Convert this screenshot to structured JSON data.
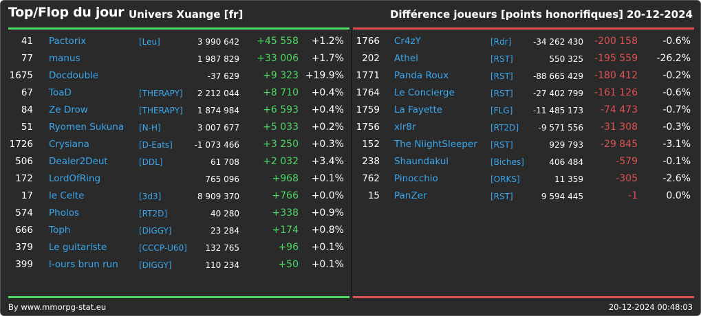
{
  "header": {
    "title": "Top/Flop du jour",
    "universe": "Univers Xuange [fr]",
    "metric": "Différence joueurs [points honorifiques]",
    "date": "20-12-2024"
  },
  "colors": {
    "background": "#2a2a2a",
    "positive": "#4cd964",
    "negative": "#e05151",
    "link": "#3aa7ee",
    "text": "#ffffff"
  },
  "top": [
    {
      "rank": "41",
      "name": "Pactorix",
      "tag": "[Leu]",
      "points": "3 990 642",
      "diff": "+45 558",
      "pct": "+1.2%"
    },
    {
      "rank": "77",
      "name": "manus",
      "tag": "",
      "points": "1 987 829",
      "diff": "+33 006",
      "pct": "+1.7%"
    },
    {
      "rank": "1675",
      "name": "Docdouble",
      "tag": "",
      "points": "-37 629",
      "diff": "+9 323",
      "pct": "+19.9%"
    },
    {
      "rank": "67",
      "name": "ToaD",
      "tag": "[THERAPY]",
      "points": "2 212 044",
      "diff": "+8 710",
      "pct": "+0.4%"
    },
    {
      "rank": "84",
      "name": "Ze Drow",
      "tag": "[THERAPY]",
      "points": "1 874 984",
      "diff": "+6 593",
      "pct": "+0.4%"
    },
    {
      "rank": "51",
      "name": "Ryomen Sukuna",
      "tag": "[N-H]",
      "points": "3 007 677",
      "diff": "+5 033",
      "pct": "+0.2%"
    },
    {
      "rank": "1726",
      "name": "Crysiana",
      "tag": "[D-Eats]",
      "points": "-1 073 466",
      "diff": "+3 250",
      "pct": "+0.3%"
    },
    {
      "rank": "506",
      "name": "Dealer2Deut",
      "tag": "[DDL]",
      "points": "61 708",
      "diff": "+2 032",
      "pct": "+3.4%"
    },
    {
      "rank": "172",
      "name": "LordOfRing",
      "tag": "",
      "points": "765 096",
      "diff": "+968",
      "pct": "+0.1%"
    },
    {
      "rank": "17",
      "name": "le Celte",
      "tag": "[3d3]",
      "points": "8 909 370",
      "diff": "+766",
      "pct": "+0.0%"
    },
    {
      "rank": "574",
      "name": "Pholos",
      "tag": "[RT2D]",
      "points": "40 280",
      "diff": "+338",
      "pct": "+0.9%"
    },
    {
      "rank": "666",
      "name": "Toph",
      "tag": "[DIGGY]",
      "points": "23 284",
      "diff": "+174",
      "pct": "+0.8%"
    },
    {
      "rank": "379",
      "name": "Le guitariste",
      "tag": "[CCCP-U60]",
      "points": "132 765",
      "diff": "+96",
      "pct": "+0.1%"
    },
    {
      "rank": "399",
      "name": "l-ours brun run",
      "tag": "[DIGGY]",
      "points": "110 234",
      "diff": "+50",
      "pct": "+0.1%"
    }
  ],
  "flop": [
    {
      "rank": "1766",
      "name": "Cr4zY",
      "tag": "[Rdr]",
      "points": "-34 262 430",
      "diff": "-200 158",
      "pct": "-0.6%"
    },
    {
      "rank": "202",
      "name": "Athel",
      "tag": "[RST]",
      "points": "550 325",
      "diff": "-195 559",
      "pct": "-26.2%"
    },
    {
      "rank": "1771",
      "name": "Panda Roux",
      "tag": "[RST]",
      "points": "-88 665 429",
      "diff": "-180 412",
      "pct": "-0.2%"
    },
    {
      "rank": "1764",
      "name": "Le Concierge",
      "tag": "[RST]",
      "points": "-27 402 799",
      "diff": "-161 126",
      "pct": "-0.6%"
    },
    {
      "rank": "1759",
      "name": "La Fayette",
      "tag": "[FLG]",
      "points": "-11 485 173",
      "diff": "-74 473",
      "pct": "-0.7%"
    },
    {
      "rank": "1756",
      "name": "xlr8r",
      "tag": "[RT2D]",
      "points": "-9 571 556",
      "diff": "-31 308",
      "pct": "-0.3%"
    },
    {
      "rank": "152",
      "name": "The NiightSleeper",
      "tag": "[RST]",
      "points": "929 793",
      "diff": "-29 845",
      "pct": "-3.1%"
    },
    {
      "rank": "238",
      "name": "Shaundakul",
      "tag": "[Biches]",
      "points": "406 484",
      "diff": "-579",
      "pct": "-0.1%"
    },
    {
      "rank": "762",
      "name": "Pinocchio",
      "tag": "[ORKS]",
      "points": "11 359",
      "diff": "-305",
      "pct": "-2.6%"
    },
    {
      "rank": "15",
      "name": "PanZer",
      "tag": "[RST]",
      "points": "9 594 445",
      "diff": "-1",
      "pct": "0.0%"
    }
  ],
  "footer": {
    "source": "By www.mmorpg-stat.eu",
    "timestamp": "20-12-2024 00:48:03"
  }
}
